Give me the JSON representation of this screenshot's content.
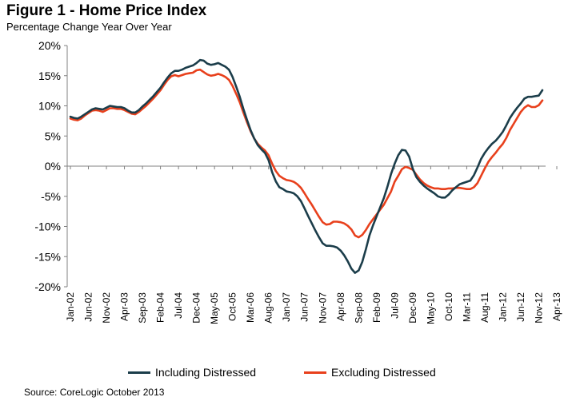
{
  "title": "Figure 1 - Home Price Index",
  "subtitle": "Percentage Change Year Over Year",
  "source": "Source: CoreLogic  October  2013",
  "chart_data": {
    "type": "line",
    "ylim": [
      -20,
      20
    ],
    "y_ticks": [
      "20%",
      "15%",
      "10%",
      "5%",
      "0%",
      "-5%",
      "-10%",
      "-15%",
      "-20%"
    ],
    "y_tick_values": [
      20,
      15,
      10,
      5,
      0,
      -5,
      -10,
      -15,
      -20
    ],
    "x_start": "2002-01",
    "x_ticks": [
      "Jan-02",
      "Jun-02",
      "Nov-02",
      "Apr-03",
      "Sep-03",
      "Feb-04",
      "Jul-04",
      "Dec-04",
      "May-05",
      "Oct-05",
      "Mar-06",
      "Aug-06",
      "Jan-07",
      "Jun-07",
      "Nov-07",
      "Apr-08",
      "Sep-08",
      "Feb-09",
      "Jul-09",
      "Dec-09",
      "May-10",
      "Oct-10",
      "Mar-11",
      "Aug-11",
      "Jan-12",
      "Jun-12",
      "Nov-12",
      "Apr-13",
      "Sep-13"
    ],
    "legend_position": "bottom",
    "grid": false,
    "series": [
      {
        "name": "Including Distressed",
        "color": "#1b3d4a",
        "values": [
          8.2,
          8.0,
          7.9,
          8.2,
          8.6,
          9.0,
          9.4,
          9.6,
          9.5,
          9.4,
          9.7,
          10.0,
          9.9,
          9.8,
          9.8,
          9.6,
          9.2,
          8.9,
          8.9,
          9.3,
          9.9,
          10.4,
          11.0,
          11.6,
          12.3,
          13.0,
          13.9,
          14.7,
          15.4,
          15.8,
          15.8,
          16.0,
          16.3,
          16.5,
          16.7,
          17.1,
          17.6,
          17.5,
          17.0,
          16.8,
          16.9,
          17.1,
          16.8,
          16.5,
          16.0,
          14.8,
          13.2,
          11.5,
          9.5,
          7.7,
          6.0,
          4.6,
          3.5,
          2.8,
          2.2,
          1.0,
          -1.0,
          -2.5,
          -3.5,
          -3.8,
          -4.2,
          -4.3,
          -4.5,
          -5.0,
          -5.8,
          -7.0,
          -8.3,
          -9.5,
          -10.7,
          -11.8,
          -12.8,
          -13.2,
          -13.2,
          -13.3,
          -13.5,
          -14.0,
          -14.8,
          -15.8,
          -17.0,
          -17.7,
          -17.3,
          -15.9,
          -13.8,
          -11.5,
          -9.8,
          -8.3,
          -6.8,
          -5.3,
          -3.4,
          -1.3,
          0.4,
          1.8,
          2.7,
          2.6,
          1.6,
          -0.4,
          -1.8,
          -2.6,
          -3.2,
          -3.7,
          -4.1,
          -4.5,
          -5.0,
          -5.2,
          -5.2,
          -4.7,
          -4.0,
          -3.5,
          -3.0,
          -2.8,
          -2.6,
          -2.4,
          -1.5,
          -0.2,
          1.2,
          2.2,
          3.0,
          3.7,
          4.2,
          4.9,
          5.7,
          6.8,
          8.0,
          8.9,
          9.7,
          10.4,
          11.2,
          11.5,
          11.5,
          11.6,
          11.7,
          12.6
        ]
      },
      {
        "name": "Excluding Distressed",
        "color": "#e8401c",
        "values": [
          7.9,
          7.7,
          7.6,
          7.9,
          8.4,
          8.8,
          9.2,
          9.3,
          9.2,
          9.0,
          9.3,
          9.6,
          9.6,
          9.5,
          9.5,
          9.3,
          9.0,
          8.7,
          8.6,
          9.0,
          9.5,
          10.0,
          10.6,
          11.2,
          11.9,
          12.6,
          13.5,
          14.3,
          14.9,
          15.1,
          14.9,
          15.1,
          15.3,
          15.4,
          15.5,
          15.9,
          16.0,
          15.6,
          15.2,
          15.0,
          15.1,
          15.3,
          15.1,
          14.8,
          14.3,
          13.3,
          12.0,
          10.6,
          8.9,
          7.3,
          5.8,
          4.6,
          3.7,
          3.1,
          2.6,
          1.8,
          0.4,
          -0.8,
          -1.6,
          -2.0,
          -2.3,
          -2.4,
          -2.6,
          -3.0,
          -3.6,
          -4.5,
          -5.5,
          -6.4,
          -7.4,
          -8.4,
          -9.3,
          -9.7,
          -9.6,
          -9.2,
          -9.2,
          -9.3,
          -9.5,
          -9.9,
          -10.5,
          -11.5,
          -11.8,
          -11.4,
          -10.6,
          -9.6,
          -8.8,
          -8.0,
          -7.2,
          -6.4,
          -5.3,
          -4.2,
          -2.6,
          -1.6,
          -0.5,
          -0.1,
          -0.3,
          -0.6,
          -1.4,
          -2.2,
          -2.8,
          -3.2,
          -3.5,
          -3.7,
          -3.7,
          -3.8,
          -3.8,
          -3.7,
          -3.7,
          -3.6,
          -3.6,
          -3.7,
          -3.8,
          -3.8,
          -3.5,
          -2.8,
          -1.6,
          -0.4,
          0.7,
          1.5,
          2.2,
          3.0,
          3.7,
          4.7,
          6.0,
          7.0,
          8.0,
          9.0,
          9.7,
          10.1,
          9.8,
          9.8,
          10.1,
          10.9
        ]
      }
    ]
  }
}
